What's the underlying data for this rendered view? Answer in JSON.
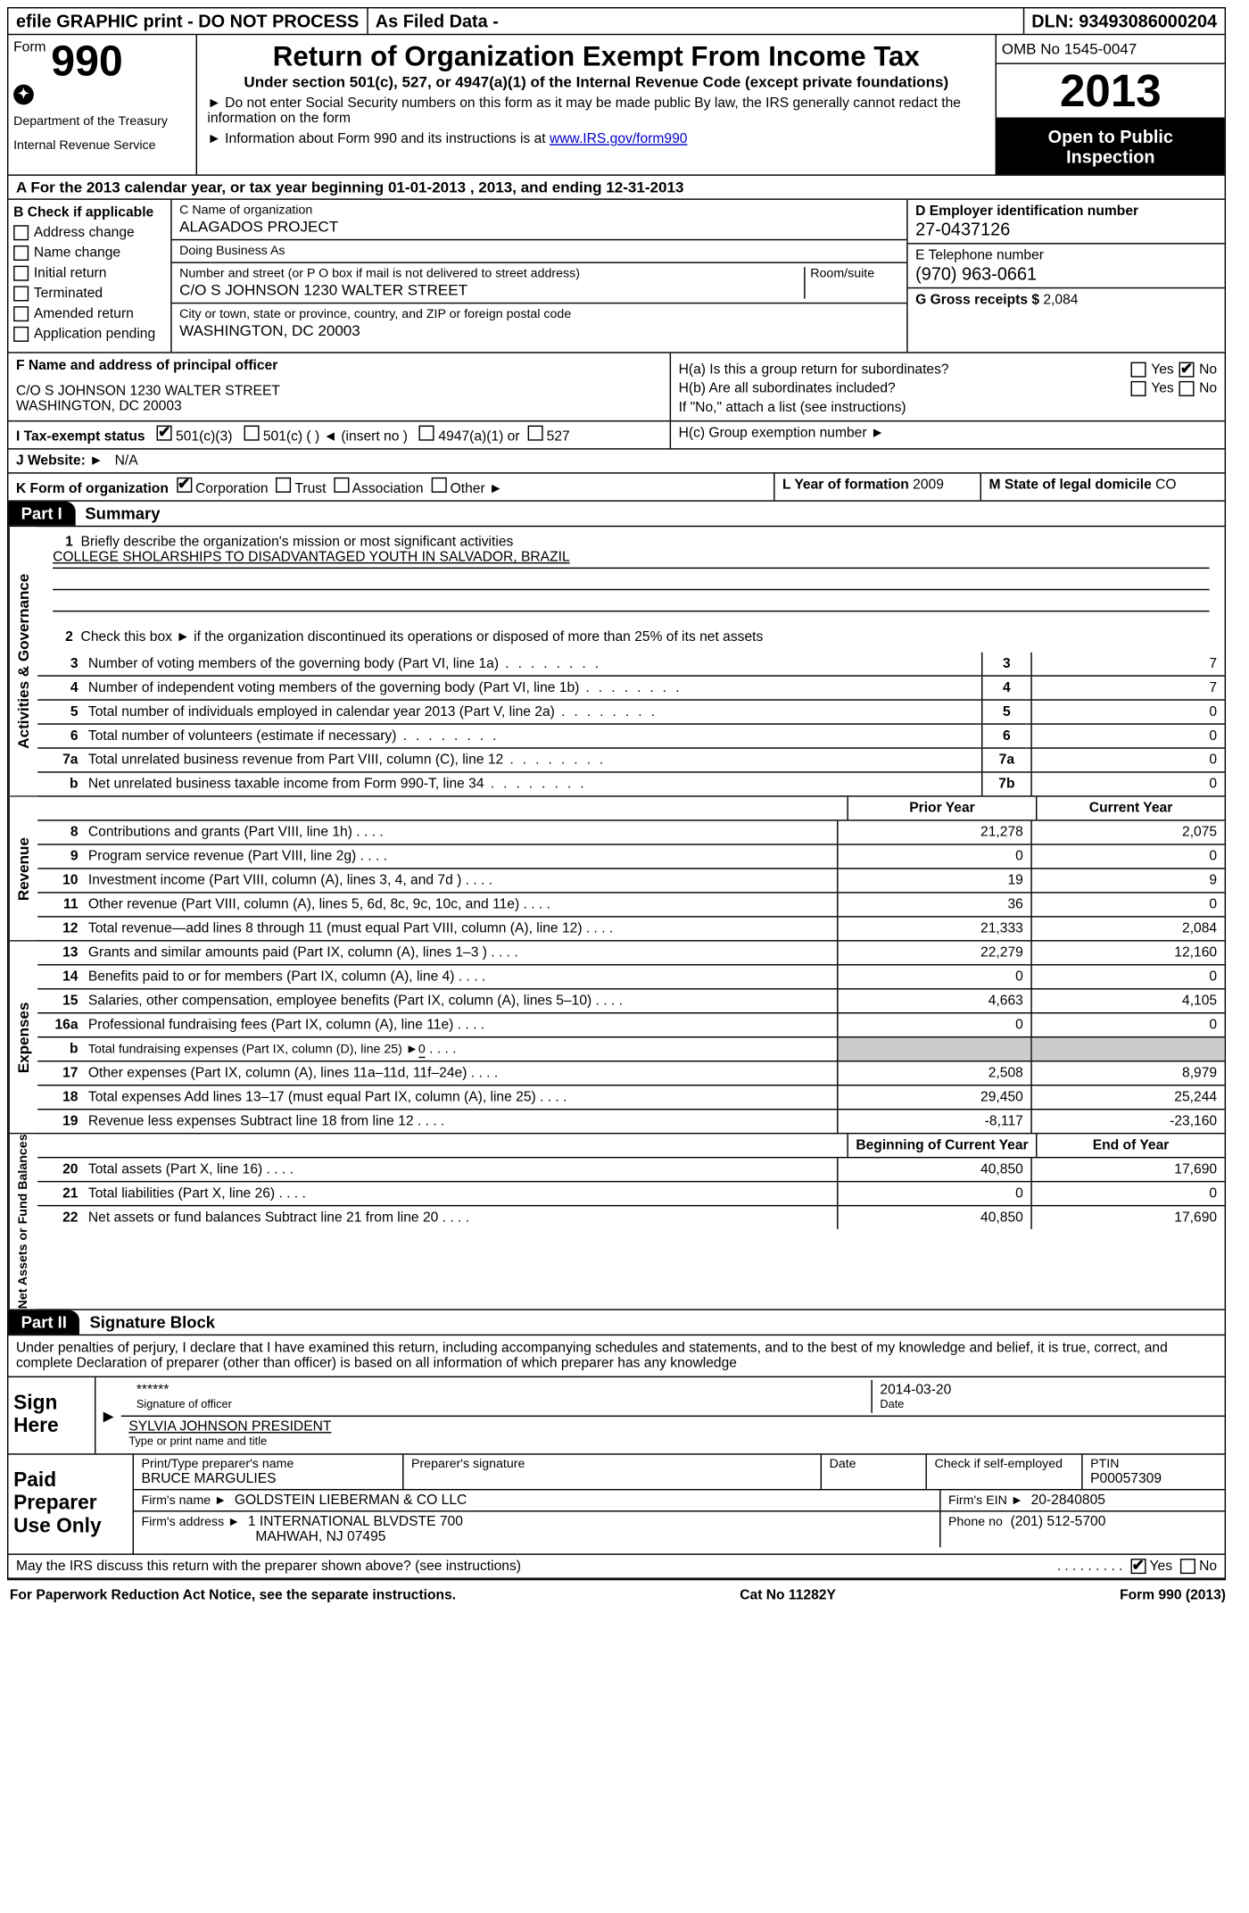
{
  "topbar": {
    "efile": "efile GRAPHIC print - DO NOT PROCESS",
    "asfiled": "As Filed Data -",
    "dln_label": "DLN:",
    "dln": "93493086000204"
  },
  "header": {
    "form_label": "Form",
    "form_num": "990",
    "dept": "Department of the Treasury",
    "irs": "Internal Revenue Service",
    "title": "Return of Organization Exempt From Income Tax",
    "sub": "Under section 501(c), 527, or 4947(a)(1) of the Internal Revenue Code (except private foundations)",
    "note1": "Do not enter Social Security numbers on this form as it may be made public  By law, the IRS generally cannot redact the information on the form",
    "note2_pre": "Information about Form 990 and its instructions is at ",
    "note2_link": "www.IRS.gov/form990",
    "omb": "OMB No  1545-0047",
    "year": "2013",
    "open": "Open to Public Inspection"
  },
  "lineA": "A  For the 2013 calendar year, or tax year beginning 01-01-2013     , 2013, and ending 12-31-2013",
  "sectionB": {
    "header": "B  Check if applicable",
    "items": [
      "Address change",
      "Name change",
      "Initial return",
      "Terminated",
      "Amended return",
      "Application pending"
    ]
  },
  "sectionC": {
    "name_label": "C Name of organization",
    "name": "ALAGADOS PROJECT",
    "dba_label": "Doing Business As",
    "dba": "",
    "addr_label": "Number and street (or P O  box if mail is not delivered to street address)",
    "room_label": "Room/suite",
    "addr": "C/O S JOHNSON 1230 WALTER STREET",
    "city_label": "City or town, state or province, country, and ZIP or foreign postal code",
    "city": "WASHINGTON, DC  20003"
  },
  "sectionD": {
    "ein_label": "D Employer identification number",
    "ein": "27-0437126",
    "phone_label": "E Telephone number",
    "phone": "(970) 963-0661",
    "gross_label": "G Gross receipts $",
    "gross": "2,084"
  },
  "sectionF": {
    "label": "F   Name and address of principal officer",
    "addr1": "C/O S JOHNSON 1230 WALTER STREET",
    "addr2": "WASHINGTON, DC  20003"
  },
  "sectionH": {
    "ha_label": "H(a)  Is this a group return for subordinates?",
    "hb_label": "H(b)  Are all subordinates included?",
    "hb_note": "If \"No,\" attach a list  (see instructions)",
    "hc_label": "H(c)   Group exemption number ►",
    "yes": "Yes",
    "no": "No",
    "ha_checked": "no"
  },
  "lineI": {
    "label": "I   Tax-exempt status",
    "o1": "501(c)(3)",
    "o2": "501(c) (   ) ◄ (insert no )",
    "o3": "4947(a)(1) or",
    "o4": "527"
  },
  "lineJ": {
    "label": "J   Website: ►",
    "val": "N/A"
  },
  "lineK": {
    "label": "K Form of organization",
    "corp": "Corporation",
    "trust": "Trust",
    "assoc": "Association",
    "other": "Other ►",
    "l_label": "L Year of formation",
    "l_val": "2009",
    "m_label": "M State of legal domicile",
    "m_val": "CO"
  },
  "part1": {
    "tab": "Part I",
    "title": "Summary"
  },
  "gov": {
    "label": "Activities & Governance",
    "q1": "Briefly describe the organization's mission or most significant activities",
    "mission": "COLLEGE SHOLARSHIPS TO DISADVANTAGED YOUTH IN SALVADOR, BRAZIL",
    "q2": "Check this box ►      if the organization discontinued its operations or disposed of more than 25% of its net assets",
    "rows": [
      {
        "n": "3",
        "d": "Number of voting members of the governing body (Part VI, line 1a)",
        "i": "3",
        "v": "7"
      },
      {
        "n": "4",
        "d": "Number of independent voting members of the governing body (Part VI, line 1b)",
        "i": "4",
        "v": "7"
      },
      {
        "n": "5",
        "d": "Total number of individuals employed in calendar year 2013 (Part V, line 2a)",
        "i": "5",
        "v": "0"
      },
      {
        "n": "6",
        "d": "Total number of volunteers (estimate if necessary)",
        "i": "6",
        "v": "0"
      },
      {
        "n": "7a",
        "d": "Total unrelated business revenue from Part VIII, column (C), line 12",
        "i": "7a",
        "v": "0"
      },
      {
        "n": "b",
        "d": "Net unrelated business taxable income from Form 990-T, line 34",
        "i": "7b",
        "v": "0"
      }
    ]
  },
  "rev": {
    "label": "Revenue",
    "head_prior": "Prior Year",
    "head_curr": "Current Year",
    "rows": [
      {
        "n": "8",
        "d": "Contributions and grants (Part VIII, line 1h)",
        "p": "21,278",
        "c": "2,075"
      },
      {
        "n": "9",
        "d": "Program service revenue (Part VIII, line 2g)",
        "p": "0",
        "c": "0"
      },
      {
        "n": "10",
        "d": "Investment income (Part VIII, column (A), lines 3, 4, and 7d )",
        "p": "19",
        "c": "9"
      },
      {
        "n": "11",
        "d": "Other revenue (Part VIII, column (A), lines 5, 6d, 8c, 9c, 10c, and 11e)",
        "p": "36",
        "c": "0"
      },
      {
        "n": "12",
        "d": "Total revenue—add lines 8 through 11 (must equal Part VIII, column (A), line 12)",
        "p": "21,333",
        "c": "2,084"
      }
    ]
  },
  "exp": {
    "label": "Expenses",
    "rows": [
      {
        "n": "13",
        "d": "Grants and similar amounts paid (Part IX, column (A), lines 1–3 )",
        "p": "22,279",
        "c": "12,160"
      },
      {
        "n": "14",
        "d": "Benefits paid to or for members (Part IX, column (A), line 4)",
        "p": "0",
        "c": "0"
      },
      {
        "n": "15",
        "d": "Salaries, other compensation, employee benefits (Part IX, column (A), lines 5–10)",
        "p": "4,663",
        "c": "4,105"
      },
      {
        "n": "16a",
        "d": "Professional fundraising fees (Part IX, column (A), line 11e)",
        "p": "0",
        "c": "0"
      },
      {
        "n": "b",
        "d": "Total fundraising expenses (Part IX, column (D), line 25) ►",
        "p": "",
        "c": "",
        "shade": true,
        "sub": true,
        "subval": "0"
      },
      {
        "n": "17",
        "d": "Other expenses (Part IX, column (A), lines 11a–11d, 11f–24e)",
        "p": "2,508",
        "c": "8,979"
      },
      {
        "n": "18",
        "d": "Total expenses  Add lines 13–17 (must equal Part IX, column (A), line 25)",
        "p": "29,450",
        "c": "25,244"
      },
      {
        "n": "19",
        "d": "Revenue less expenses  Subtract line 18 from line 12",
        "p": "-8,117",
        "c": "-23,160"
      }
    ]
  },
  "net": {
    "label": "Net Assets or Fund Balances",
    "head_prior": "Beginning of Current Year",
    "head_curr": "End of Year",
    "rows": [
      {
        "n": "20",
        "d": "Total assets (Part X, line 16)",
        "p": "40,850",
        "c": "17,690"
      },
      {
        "n": "21",
        "d": "Total liabilities (Part X, line 26)",
        "p": "0",
        "c": "0"
      },
      {
        "n": "22",
        "d": "Net assets or fund balances  Subtract line 21 from line 20",
        "p": "40,850",
        "c": "17,690"
      }
    ]
  },
  "part2": {
    "tab": "Part II",
    "title": "Signature Block"
  },
  "perjury": "Under penalties of perjury, I declare that I have examined this return, including accompanying schedules and statements, and to the best of my knowledge and belief, it is true, correct, and complete  Declaration of preparer (other than officer) is based on all information of which preparer has any knowledge",
  "sign": {
    "side": "Sign Here",
    "sig_masked": "******",
    "sig_label": "Signature of officer",
    "date": "2014-03-20",
    "date_label": "Date",
    "name": "SYLVIA JOHNSON PRESIDENT",
    "name_label": "Type or print name and title"
  },
  "prep": {
    "side": "Paid Preparer Use Only",
    "r1_name_label": "Print/Type preparer's name",
    "r1_name": "BRUCE MARGULIES",
    "r1_sig_label": "Preparer's signature",
    "r1_date_label": "Date",
    "r1_self_label": "Check        if self-employed",
    "r1_ptin_label": "PTIN",
    "r1_ptin": "P00057309",
    "r2_firm_label": "Firm's name    ►",
    "r2_firm": "GOLDSTEIN LIEBERMAN & CO LLC",
    "r2_ein_label": "Firm's EIN ►",
    "r2_ein": "20-2840805",
    "r3_addr_label": "Firm's address ►",
    "r3_addr1": "1 INTERNATIONAL BLVDSTE 700",
    "r3_addr2": "MAHWAH, NJ  07495",
    "r3_phone_label": "Phone no",
    "r3_phone": "(201) 512-5700"
  },
  "discuss": {
    "q": "May the IRS discuss this return with the preparer shown above? (see instructions)",
    "yes": "Yes",
    "no": "No"
  },
  "footer": {
    "left": "For Paperwork Reduction Act Notice, see the separate instructions.",
    "mid": "Cat  No  11282Y",
    "right": "Form 990 (2013)"
  }
}
